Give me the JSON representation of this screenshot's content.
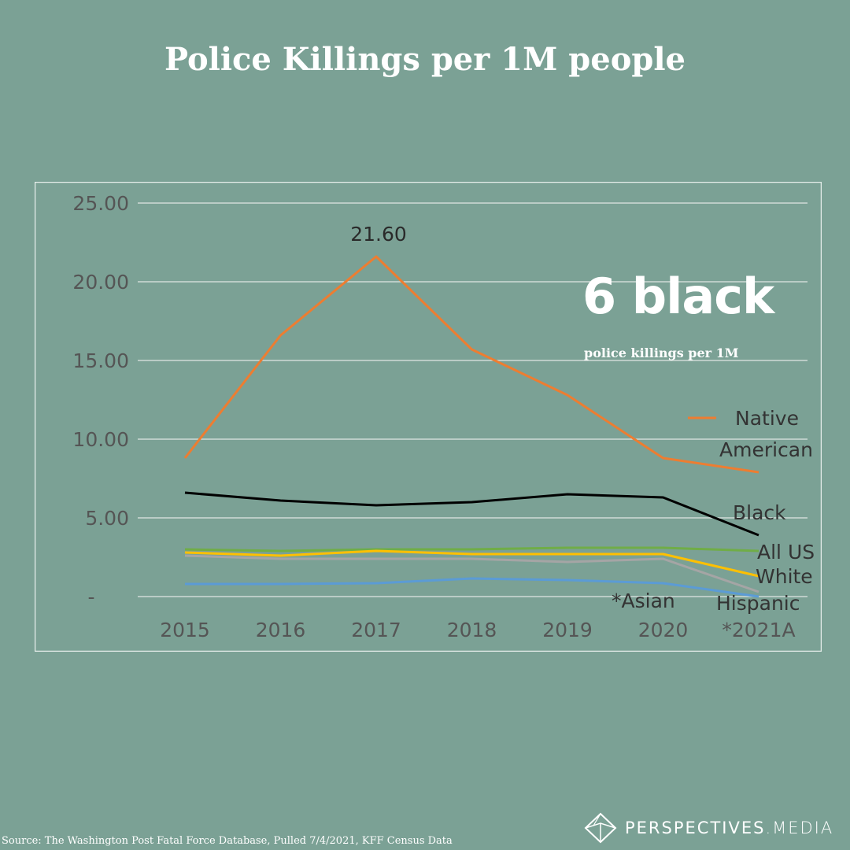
{
  "title": "Police Killings per 1M people",
  "headline": "6 black",
  "subheadline": "police killings per 1M",
  "source": "Source:  The Washington Post Fatal Force Database, Pulled 7/4/2021, KFF Census Data",
  "brand": {
    "name_bold": "PERSPECTIVES",
    "name_light": ".MEDIA",
    "logo_icon": "diamond-logo-icon"
  },
  "colors": {
    "background": "#7ba195",
    "frame": "#e6eeeb",
    "grid": "#dfe7e4",
    "native_american": "#ed7d31",
    "black": "#000000",
    "all_us": "#70ad47",
    "white": "#ffc000",
    "asian": "#5b9bd5",
    "hispanic": "#a5a5a5"
  },
  "chart_data": {
    "type": "line",
    "x": [
      "2015",
      "2016",
      "2017",
      "2018",
      "2019",
      "2020",
      "*2021A"
    ],
    "ylim": [
      0,
      25
    ],
    "y_ticks": [
      "-",
      "5.00",
      "10.00",
      "15.00",
      "20.00",
      "25.00"
    ],
    "y_tick_values": [
      0,
      5,
      10,
      15,
      20,
      25
    ],
    "grid": true,
    "peak_label": {
      "text": "21.60",
      "series": 0,
      "index": 2
    },
    "legend": {
      "placement": "right",
      "entry": "Native",
      "entry_cont": "American"
    },
    "series": [
      {
        "name": "Native American",
        "color": "#ed7d31",
        "values": [
          8.8,
          16.6,
          21.6,
          15.7,
          12.8,
          8.8,
          7.9
        ]
      },
      {
        "name": "Black",
        "color": "#000000",
        "values": [
          6.6,
          6.1,
          5.8,
          6.0,
          6.5,
          6.3,
          3.9
        ]
      },
      {
        "name": "All US",
        "color": "#70ad47",
        "values": [
          3.0,
          2.9,
          3.0,
          3.0,
          3.1,
          3.1,
          2.9
        ]
      },
      {
        "name": "White",
        "color": "#ffc000",
        "values": [
          2.8,
          2.6,
          2.9,
          2.7,
          2.7,
          2.7,
          1.3
        ]
      },
      {
        "name": "Hispanic",
        "color": "#a5a5a5",
        "values": [
          2.6,
          2.4,
          2.4,
          2.4,
          2.2,
          2.4,
          0.3
        ]
      },
      {
        "name": "*Asian",
        "color": "#5b9bd5",
        "values": [
          0.8,
          0.8,
          0.85,
          1.15,
          1.05,
          0.85,
          0.0
        ]
      }
    ]
  }
}
